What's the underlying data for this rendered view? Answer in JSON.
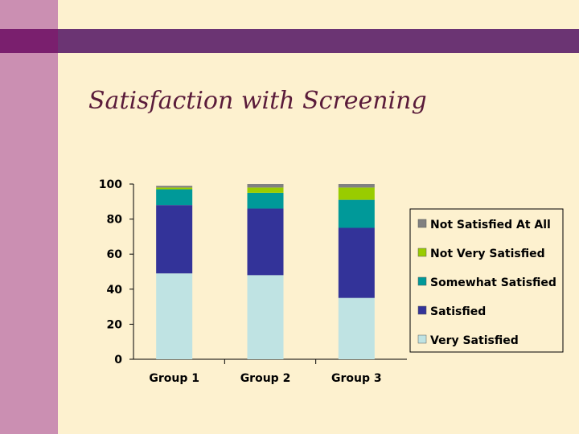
{
  "slide": {
    "title": "Satisfaction with Screening"
  },
  "chart_data": {
    "type": "bar",
    "stacked": true,
    "title": "Satisfaction with Screening",
    "categories": [
      "Group 1",
      "Group 2",
      "Group 3"
    ],
    "ylim": [
      0,
      100
    ],
    "yticks": [
      0,
      20,
      40,
      60,
      80,
      100
    ],
    "legend_position": "right",
    "series": [
      {
        "name": "Very Satisfied",
        "color": "#bfe3e3",
        "values": [
          49,
          48,
          35
        ]
      },
      {
        "name": "Satisfied",
        "color": "#333399",
        "values": [
          39,
          38,
          40
        ]
      },
      {
        "name": "Somewhat Satisfied",
        "color": "#009999",
        "values": [
          9,
          9,
          16
        ]
      },
      {
        "name": "Not Very Satisfied",
        "color": "#99cc00",
        "values": [
          1,
          3,
          7
        ]
      },
      {
        "name": "Not Satisfied At All",
        "color": "#808080",
        "values": [
          1,
          2,
          2
        ]
      }
    ]
  }
}
